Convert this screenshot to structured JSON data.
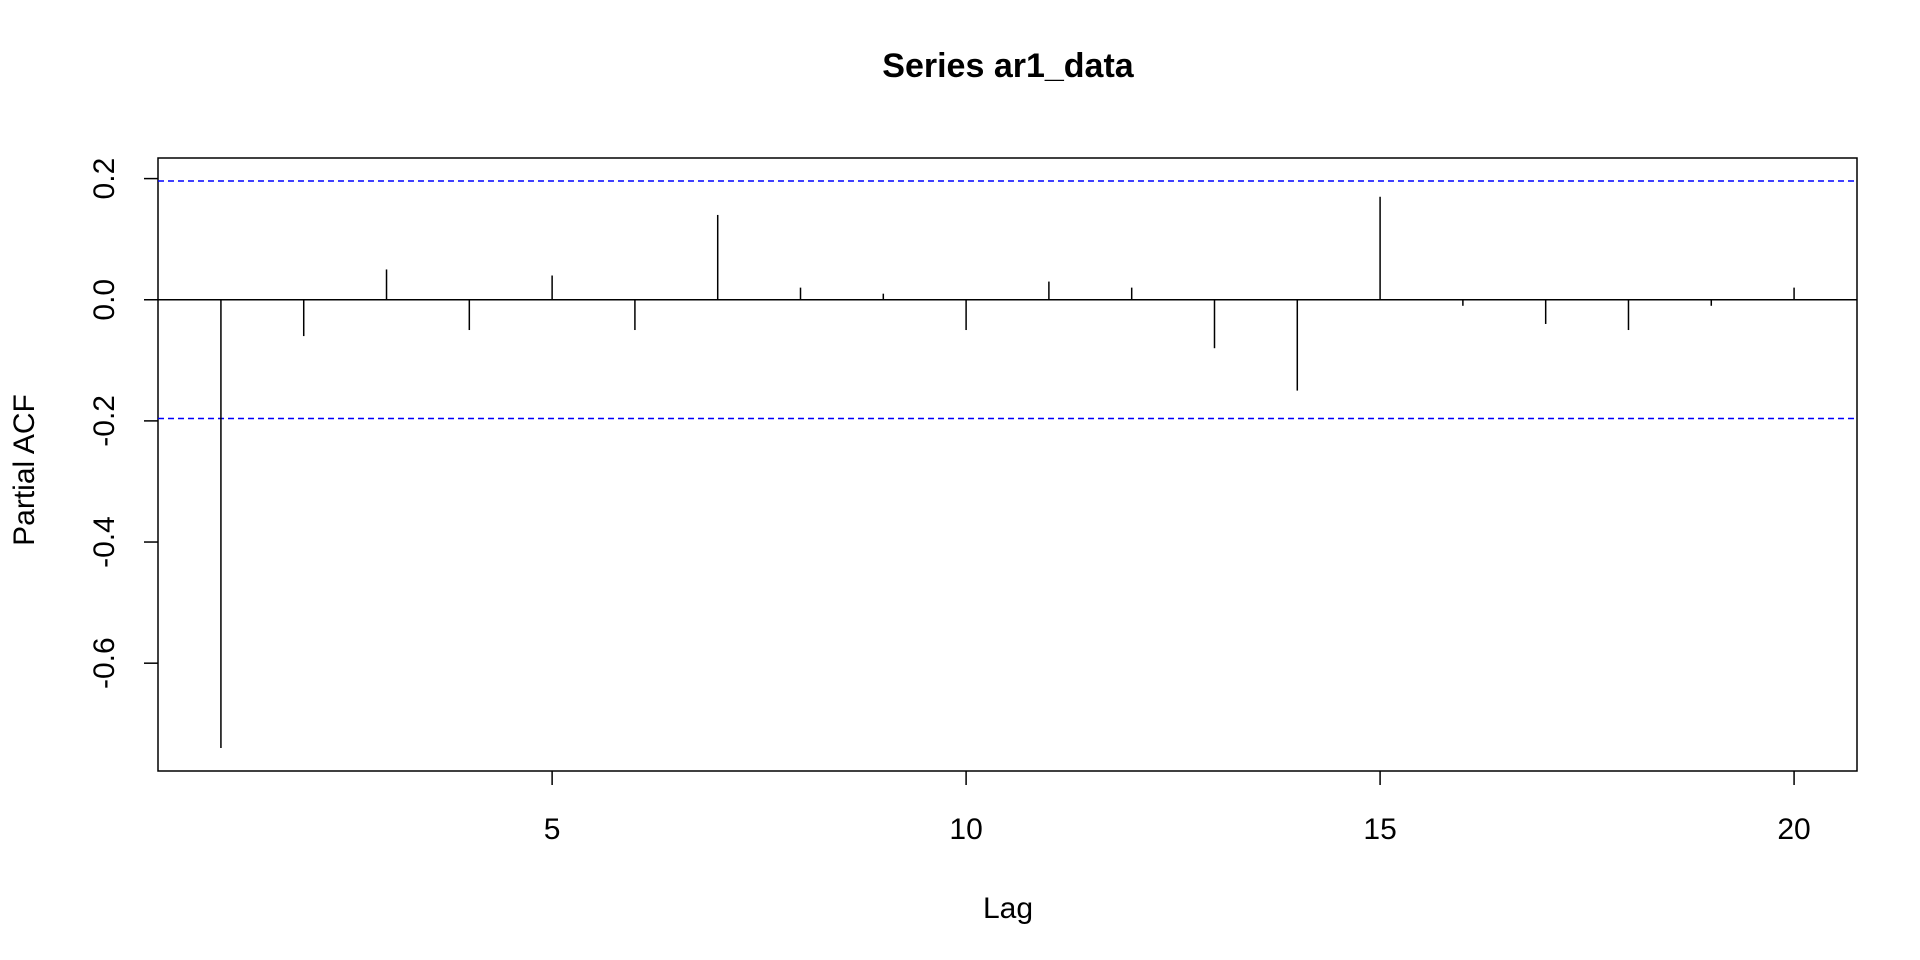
{
  "chart_data": {
    "type": "pacf",
    "title": "Series  ar1_data",
    "x_label": "Lag",
    "y_label": "Partial ACF",
    "x": [
      1,
      2,
      3,
      4,
      5,
      6,
      7,
      8,
      9,
      10,
      11,
      12,
      13,
      14,
      15,
      16,
      17,
      18,
      19,
      20
    ],
    "values": [
      -0.74,
      -0.06,
      0.05,
      -0.05,
      0.04,
      -0.05,
      0.14,
      0.02,
      0.01,
      -0.05,
      0.03,
      0.02,
      -0.08,
      -0.15,
      0.17,
      -0.01,
      -0.04,
      -0.05,
      -0.01,
      0.02
    ],
    "color": "#000000",
    "confidence_bounds": [
      -0.196,
      0.196
    ],
    "confidence_color": "#0000ff",
    "xlim": [
      0.24,
      20.76
    ],
    "ylim": [
      -0.778,
      0.234
    ],
    "xticks": [
      5,
      10,
      15,
      20
    ],
    "yticks": [
      -0.6,
      -0.4,
      -0.2,
      {
        "value": 0,
        "label": "0.0"
      },
      0.2
    ]
  }
}
